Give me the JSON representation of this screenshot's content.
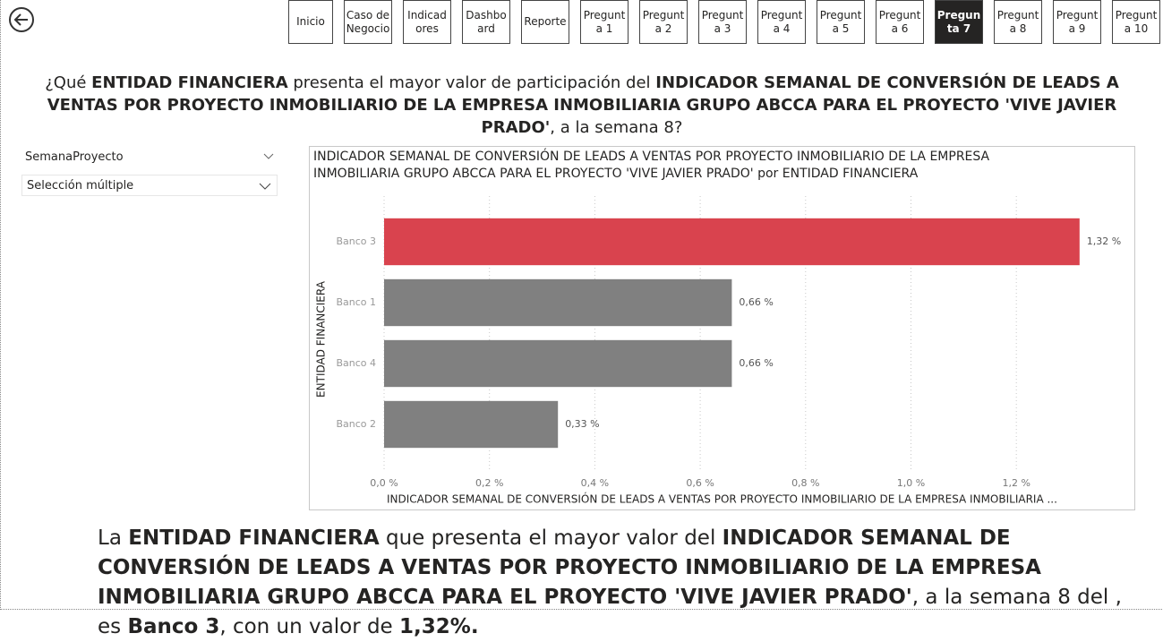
{
  "nav": {
    "items": [
      "Inicio",
      "Caso de Negocio",
      "Indicadores",
      "Dashboard",
      "Reporte",
      "Pregunta 1",
      "Pregunta 2",
      "Pregunta 3",
      "Pregunta 4",
      "Pregunta 5",
      "Pregunta 6",
      "Pregunta 7",
      "Pregunta 8",
      "Pregunta 9",
      "Pregunta 10"
    ],
    "active": 11
  },
  "question": [
    {
      "text": "¿Qué ",
      "bold": false
    },
    {
      "text": "ENTIDAD FINANCIERA",
      "bold": true
    },
    {
      "text": " presenta el mayor valor de participación del ",
      "bold": false
    },
    {
      "text": "INDICADOR SEMANAL DE CONVERSIÓN DE LEADS A VENTAS POR PROYECTO INMOBILIARIO DE LA EMPRESA INMOBILIARIA GRUPO ABCCA PARA EL PROYECTO 'VIVE JAVIER PRADO'",
      "bold": true
    },
    {
      "text": ", a la semana 8?",
      "bold": false
    }
  ],
  "slicer": {
    "title": "SemanaProyecto",
    "value": "Selección múltiple"
  },
  "chart_data": {
    "type": "hbar",
    "title": "INDICADOR SEMANAL DE CONVERSIÓN DE LEADS A VENTAS POR PROYECTO INMOBILIARIO DE LA EMPRESA INMOBILIARIA GRUPO ABCCA PARA EL PROYECTO 'VIVE JAVIER PRADO' por ENTIDAD FINANCIERA",
    "y_label": "ENTIDAD FINANCIERA",
    "x_label": "INDICADOR SEMANAL DE CONVERSIÓN DE LEADS A VENTAS POR PROYECTO INMOBILIARIO DE LA EMPRESA INMOBILIARIA ...",
    "categories": [
      "Banco 3",
      "Banco 1",
      "Banco 4",
      "Banco 2"
    ],
    "values": [
      1.32,
      0.66,
      0.66,
      0.33
    ],
    "value_labels": [
      "1,32 %",
      "0,66 %",
      "0,66 %",
      "0,33 %"
    ],
    "colors": [
      "#d9434e",
      "#808080",
      "#808080",
      "#808080"
    ],
    "xlim": [
      0,
      1.39
    ],
    "xticks": [
      {
        "value": 0,
        "label": "0,0 %"
      },
      {
        "value": 0.2,
        "label": "0,2 %"
      },
      {
        "value": 0.4,
        "label": "0,4 %"
      },
      {
        "value": 0.6,
        "label": "0,6 %"
      },
      {
        "value": 0.8,
        "label": "0,8 %"
      },
      {
        "value": 1.0,
        "label": "1,0 %"
      },
      {
        "value": 1.2,
        "label": "1,2 %"
      }
    ],
    "grid": true
  },
  "answer": [
    {
      "text": "La ",
      "bold": false
    },
    {
      "text": "ENTIDAD FINANCIERA",
      "bold": true
    },
    {
      "text": " que presenta el mayor valor del ",
      "bold": false
    },
    {
      "text": "INDICADOR SEMANAL DE CONVERSIÓN DE LEADS A VENTAS POR PROYECTO INMOBILIARIO DE LA EMPRESA INMOBILIARIA GRUPO ABCCA PARA EL PROYECTO 'VIVE JAVIER PRADO'",
      "bold": true
    },
    {
      "text": ", a la semana 8 del , es ",
      "bold": false
    },
    {
      "text": "Banco 3",
      "bold": true
    },
    {
      "text": ", con un valor de ",
      "bold": false
    },
    {
      "text": "1,32%.",
      "bold": true
    }
  ]
}
